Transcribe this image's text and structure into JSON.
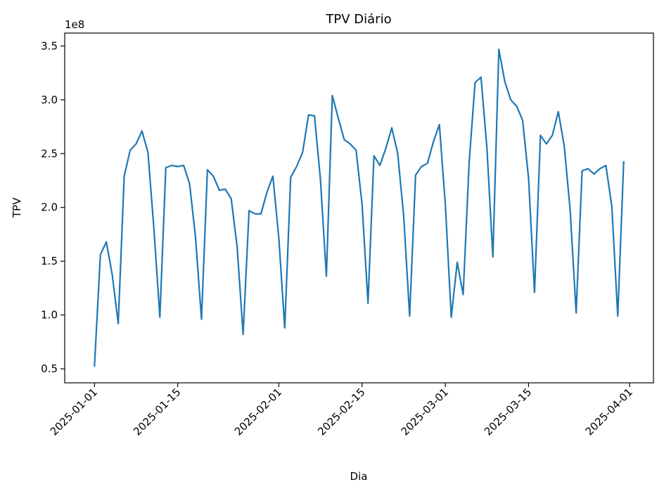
{
  "chart_data": {
    "type": "line",
    "title": "TPV Diário",
    "xlabel": "Dia",
    "ylabel": "TPV",
    "y_scale_label": "1e8",
    "y_multiplier": 100000000,
    "x_start": "2025-01-01",
    "x_end": "2025-03-31",
    "xlim": [
      "2024-12-27",
      "2025-04-05"
    ],
    "ylim": [
      0.37,
      3.62
    ],
    "x_ticks": [
      "2025-01-01",
      "2025-01-15",
      "2025-02-01",
      "2025-02-15",
      "2025-03-01",
      "2025-03-15",
      "2025-04-01"
    ],
    "y_ticks": [
      0.5,
      1.0,
      1.5,
      2.0,
      2.5,
      3.0,
      3.5
    ],
    "y_tick_labels": [
      "0.5",
      "1.0",
      "1.5",
      "2.0",
      "2.5",
      "3.0",
      "3.5"
    ],
    "line_color": "#1f77b4",
    "grid": false,
    "legend": "none",
    "series": [
      {
        "values": [
          0.52,
          1.56,
          1.68,
          1.37,
          0.92,
          2.29,
          2.53,
          2.59,
          2.71,
          2.51,
          1.8,
          0.98,
          2.37,
          2.39,
          2.38,
          2.39,
          2.22,
          1.72,
          0.96,
          2.35,
          2.29,
          2.16,
          2.17,
          2.08,
          1.63,
          0.82,
          1.97,
          1.94,
          1.94,
          2.14,
          2.29,
          1.72,
          0.88,
          2.28,
          2.38,
          2.51,
          2.86,
          2.85,
          2.26,
          1.36,
          3.04,
          2.83,
          2.63,
          2.59,
          2.53,
          2.03,
          1.11,
          2.48,
          2.39,
          2.55,
          2.74,
          2.5,
          1.92,
          0.99,
          2.3,
          2.38,
          2.41,
          2.61,
          2.77,
          2.03,
          0.98,
          1.49,
          1.19,
          2.41,
          3.16,
          3.21,
          2.55,
          1.54,
          3.47,
          3.17,
          3.0,
          2.94,
          2.81,
          2.27,
          1.21,
          2.67,
          2.59,
          2.67,
          2.89,
          2.57,
          1.97,
          1.02,
          2.34,
          2.36,
          2.31,
          2.36,
          2.39,
          2.01,
          0.99,
          2.43
        ]
      }
    ]
  }
}
